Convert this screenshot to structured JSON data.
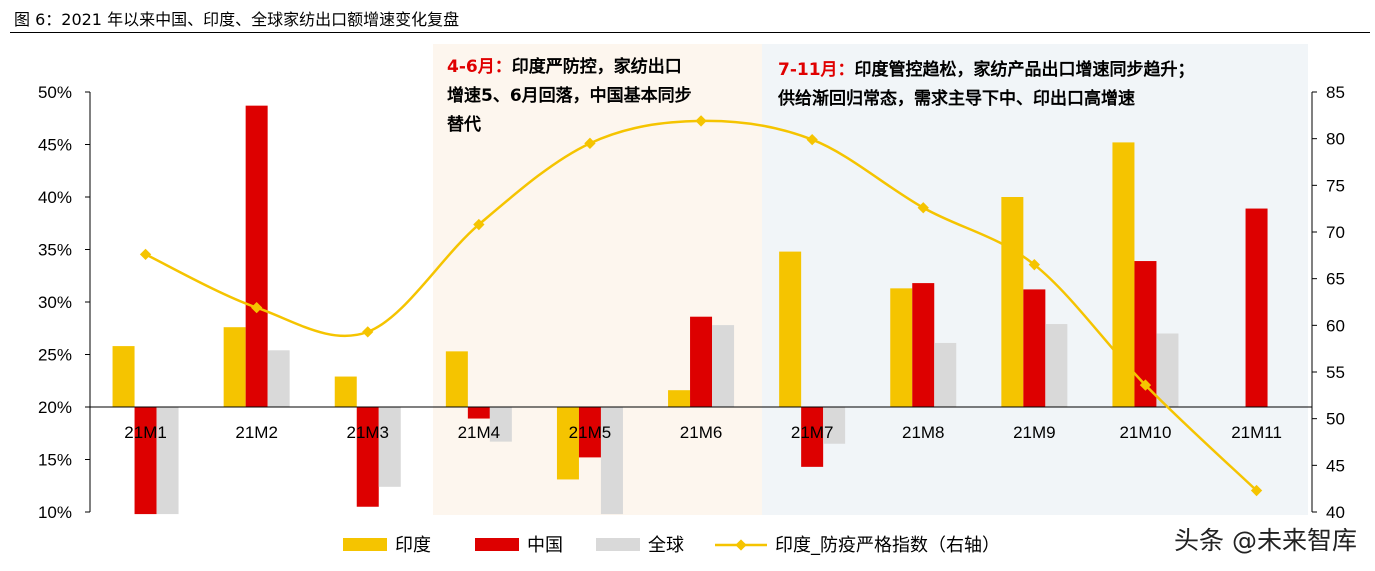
{
  "title": "图 6：2021 年以来中国、印度、全球家纺出口额增速变化复盘",
  "watermark": "头条 @未来智库",
  "colors": {
    "india": "#F5C400",
    "china": "#DD0000",
    "global": "#D9D9D9",
    "line": "#F5C400",
    "shade1": "#FDF6EE",
    "shade2": "#F1F5F8",
    "annot_red": "#E00000"
  },
  "annotations": [
    {
      "period": "4-6月：",
      "lines": [
        "印度严防控，家纺出口",
        "增速5、6月回落，中国基本同步",
        "替代"
      ]
    },
    {
      "period": "7-11月：",
      "lines": [
        "印度管控趋松，家纺产品出口增速同步趋升；",
        "供给渐回归常态，需求主导下中、印出口高增速"
      ]
    }
  ],
  "chart_data": {
    "type": "bar",
    "categories": [
      "21M1",
      "21M2",
      "21M3",
      "21M4",
      "21M5",
      "21M6",
      "21M7",
      "21M8",
      "21M9",
      "21M10",
      "21M11"
    ],
    "series": [
      {
        "name": "印度",
        "axis": "left",
        "values": [
          25.8,
          27.6,
          22.9,
          25.3,
          13.1,
          21.6,
          34.8,
          31.3,
          40.0,
          45.2,
          null
        ]
      },
      {
        "name": "中国",
        "axis": "left",
        "values": [
          9.8,
          48.7,
          10.5,
          18.9,
          15.2,
          28.6,
          14.3,
          31.8,
          31.2,
          33.9,
          38.9
        ]
      },
      {
        "name": "全球",
        "axis": "left",
        "values": [
          9.8,
          25.4,
          12.4,
          16.7,
          9.8,
          27.8,
          16.5,
          26.1,
          27.9,
          27.0,
          null
        ]
      },
      {
        "name": "印度_防疫严格指数（右轴）",
        "type": "line",
        "axis": "right",
        "values": [
          67.6,
          61.9,
          59.3,
          70.8,
          79.5,
          81.9,
          79.9,
          72.6,
          66.5,
          53.6,
          42.3
        ]
      }
    ],
    "baseline": 20,
    "y_left": {
      "range": [
        10,
        50
      ],
      "ticks": [
        "10%",
        "15%",
        "20%",
        "25%",
        "30%",
        "35%",
        "40%",
        "45%",
        "50%"
      ]
    },
    "y_right": {
      "range": [
        40,
        85
      ],
      "ticks": [
        "40",
        "45",
        "50",
        "55",
        "60",
        "65",
        "70",
        "75",
        "80",
        "85"
      ]
    },
    "legend": [
      "印度",
      "中国",
      "全球",
      "印度_防疫严格指数（右轴）"
    ],
    "legend_position": "bottom",
    "grid": false
  }
}
